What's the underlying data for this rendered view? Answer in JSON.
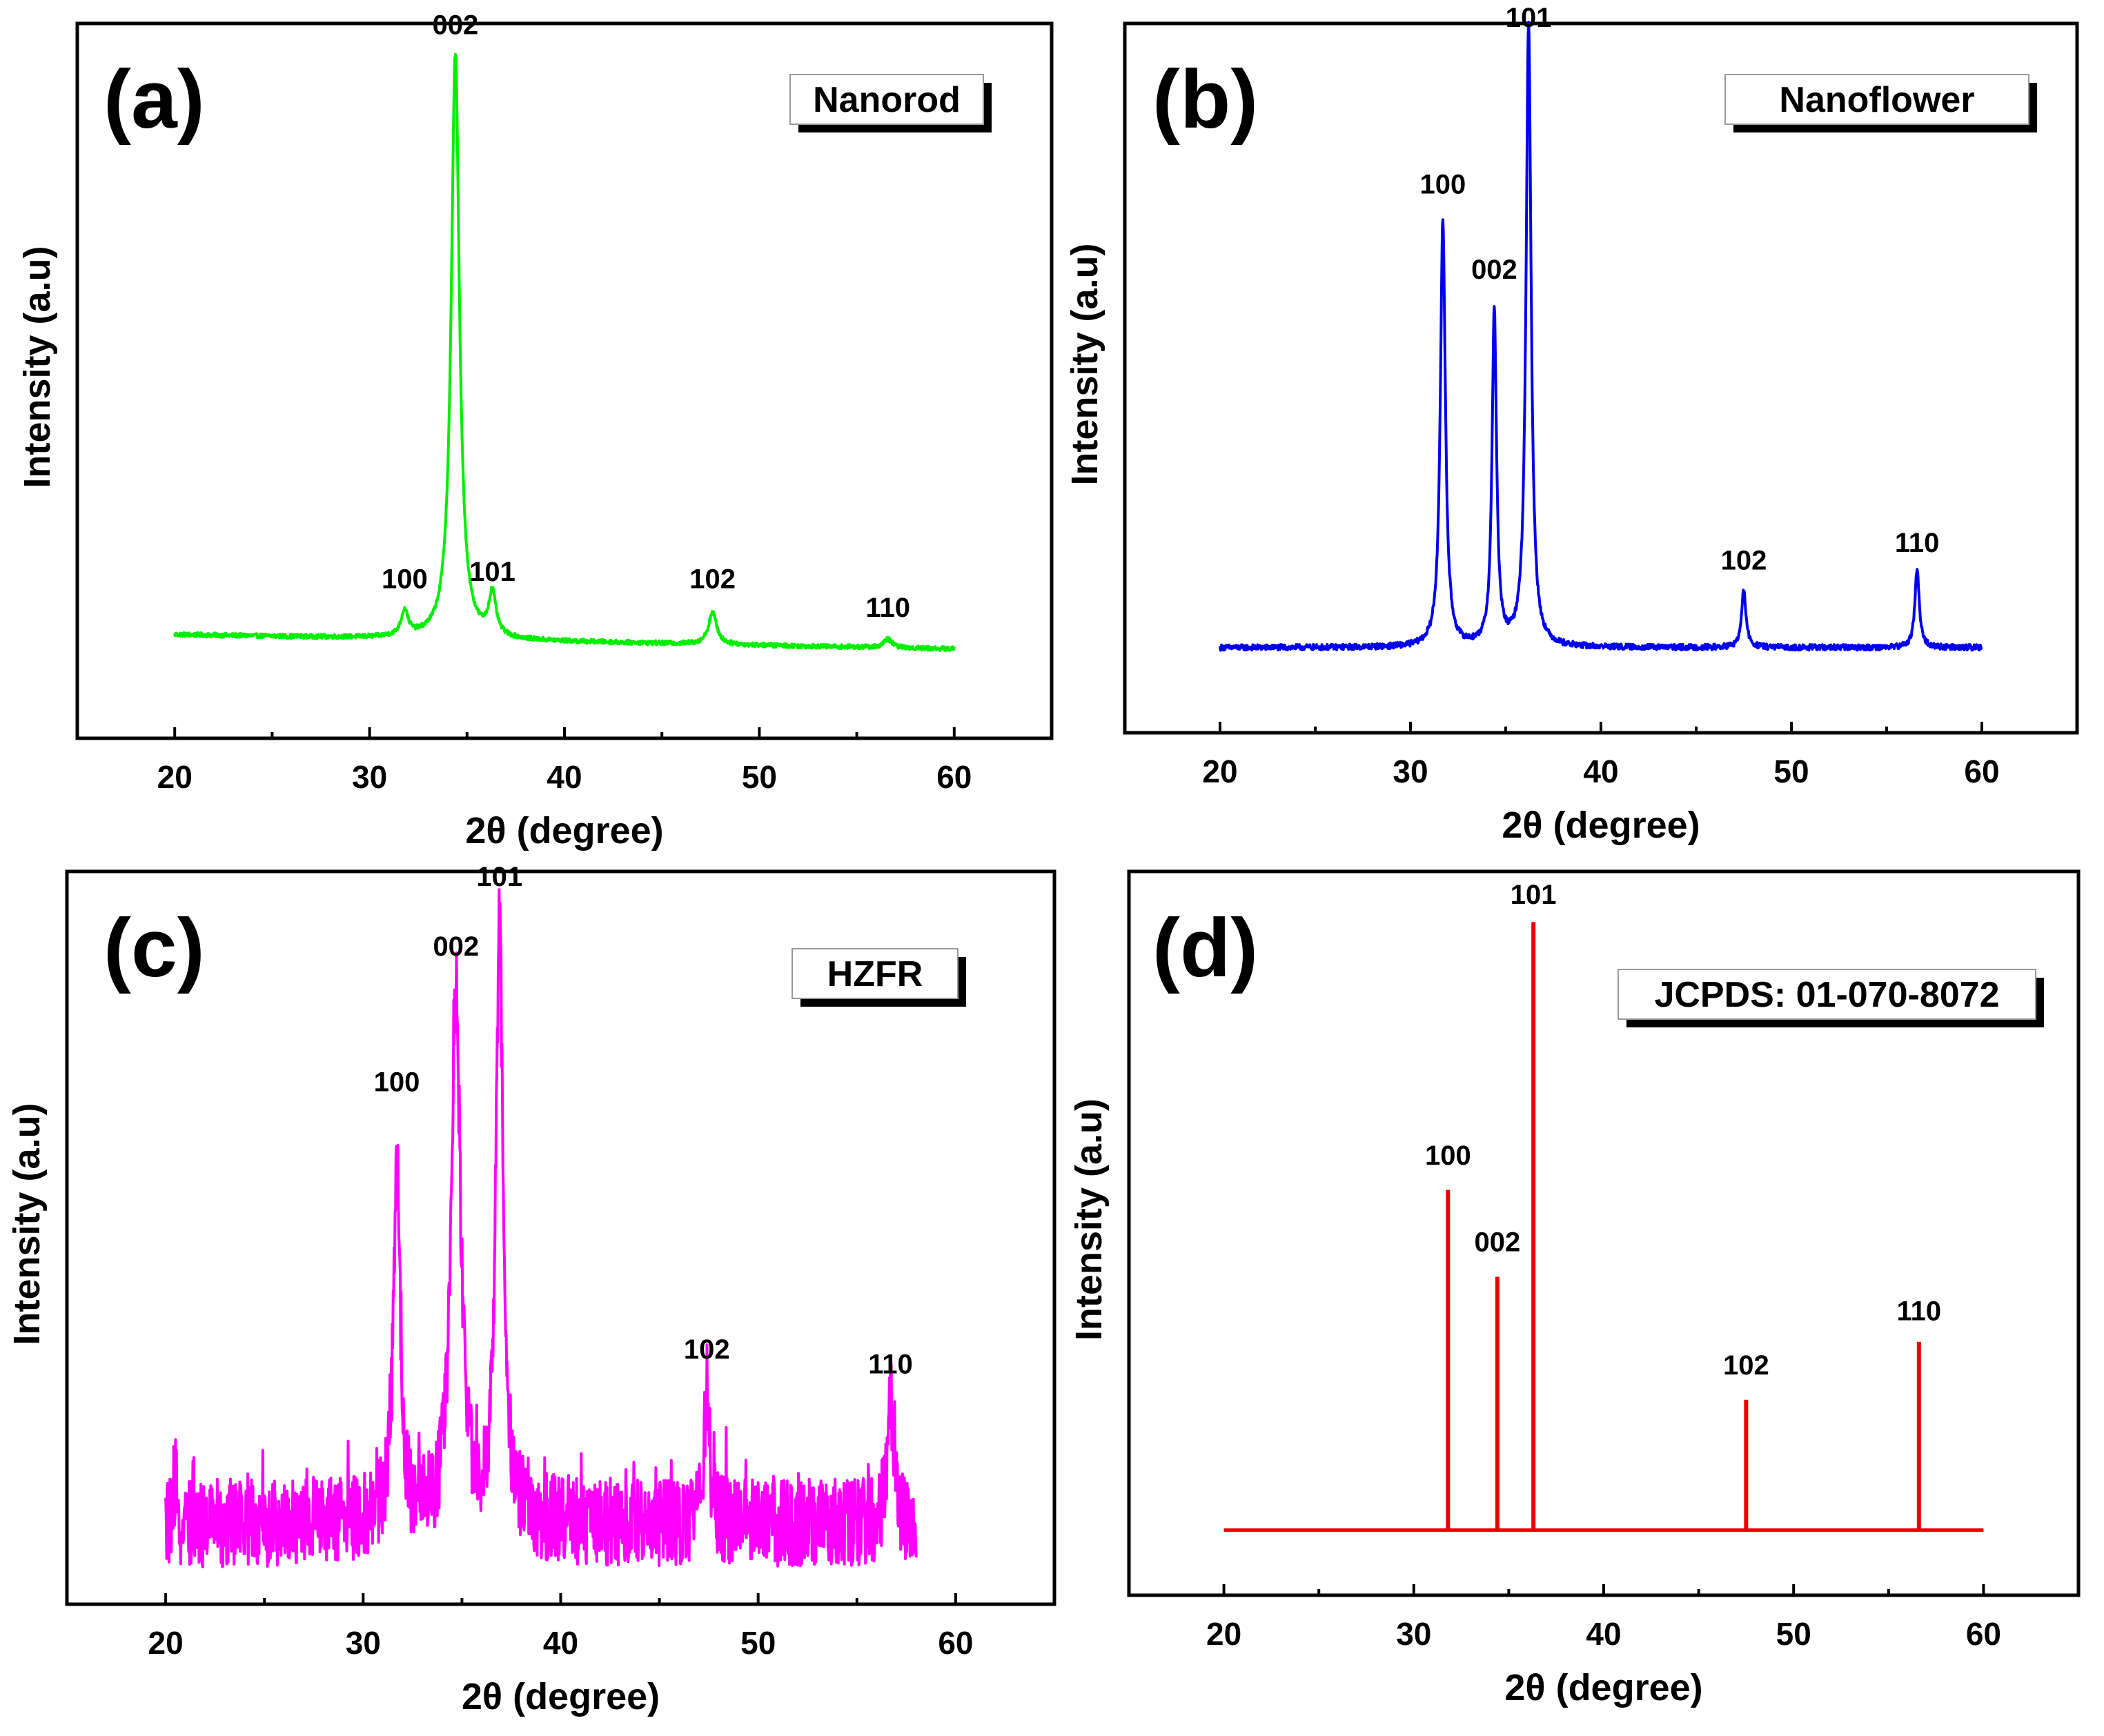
{
  "chart_data": [
    {
      "type": "line",
      "panel": "(a)",
      "legend": "Nanorod",
      "xlabel": "2θ (degree)",
      "ylabel": "Intensity (a.u)",
      "xlim": [
        15,
        65
      ],
      "ylim": [
        0,
        1
      ],
      "xticks": [
        20,
        30,
        40,
        50,
        60
      ],
      "color": "#00ee00",
      "style": "noisy-line",
      "x_start": 20,
      "x_end": 60,
      "baseline": [
        [
          20,
          0.145
        ],
        [
          60,
          0.125
        ]
      ],
      "noise": 0.003,
      "peaks": [
        {
          "label": "100",
          "x": 31.8,
          "height": 0.035,
          "width": 0.22
        },
        {
          "label": "002",
          "x": 34.4,
          "height": 0.82,
          "width": 0.25
        },
        {
          "label": "101",
          "x": 36.3,
          "height": 0.06,
          "width": 0.22
        },
        {
          "label": "102",
          "x": 47.6,
          "height": 0.045,
          "width": 0.25
        },
        {
          "label": "110",
          "x": 56.6,
          "height": 0.012,
          "width": 0.25
        }
      ],
      "peak_labels": [
        {
          "text": "100",
          "x": 31.8,
          "y": 0.21
        },
        {
          "text": "002",
          "x": 34.4,
          "y": 0.985
        },
        {
          "text": "101",
          "x": 36.3,
          "y": 0.22
        },
        {
          "text": "102",
          "x": 47.6,
          "y": 0.21
        },
        {
          "text": "110",
          "x": 56.6,
          "y": 0.17
        }
      ]
    },
    {
      "type": "line",
      "panel": "(b)",
      "legend": "Nanoflower",
      "xlabel": "2θ (degree)",
      "ylabel": "Intensity (a.u)",
      "xlim": [
        15,
        65
      ],
      "ylim": [
        0,
        1
      ],
      "xticks": [
        20,
        30,
        40,
        50,
        60
      ],
      "color": "#0000ee",
      "style": "noisy-line",
      "x_start": 20,
      "x_end": 60,
      "baseline": [
        [
          20,
          0.12
        ],
        [
          60,
          0.12
        ]
      ],
      "noise": 0.004,
      "peaks": [
        {
          "label": "100",
          "x": 31.7,
          "height": 0.6,
          "width": 0.16
        },
        {
          "label": "002",
          "x": 34.4,
          "height": 0.475,
          "width": 0.14
        },
        {
          "label": "101",
          "x": 36.2,
          "height": 0.88,
          "width": 0.16
        },
        {
          "label": "102",
          "x": 47.5,
          "height": 0.08,
          "width": 0.14
        },
        {
          "label": "110",
          "x": 56.6,
          "height": 0.11,
          "width": 0.14
        }
      ],
      "peak_labels": [
        {
          "text": "100",
          "x": 31.7,
          "y": 0.76
        },
        {
          "text": "002",
          "x": 34.4,
          "y": 0.64
        },
        {
          "text": "101",
          "x": 36.2,
          "y": 0.995
        },
        {
          "text": "102",
          "x": 47.5,
          "y": 0.23
        },
        {
          "text": "110",
          "x": 56.6,
          "y": 0.255
        }
      ]
    },
    {
      "type": "line",
      "panel": "(c)",
      "legend": "HZFR",
      "xlabel": "2θ (degree)",
      "ylabel": "Intensity (a.u)",
      "xlim": [
        15,
        65
      ],
      "ylim": [
        0,
        1
      ],
      "xticks": [
        20,
        30,
        40,
        50,
        60
      ],
      "color": "#ff00ff",
      "style": "noisy-line",
      "x_start": 20,
      "x_end": 58,
      "baseline": [
        [
          20,
          0.11
        ],
        [
          58,
          0.11
        ]
      ],
      "noise": 0.06,
      "peaks": [
        {
          "label": "100",
          "x": 31.7,
          "height": 0.5,
          "width": 0.2
        },
        {
          "label": "002",
          "x": 34.7,
          "height": 0.72,
          "width": 0.28
        },
        {
          "label": "101",
          "x": 36.9,
          "height": 0.8,
          "width": 0.22
        },
        {
          "label": "102",
          "x": 47.4,
          "height": 0.2,
          "width": 0.15
        },
        {
          "label": "110",
          "x": 56.7,
          "height": 0.18,
          "width": 0.18
        }
      ],
      "peak_labels": [
        {
          "text": "100",
          "x": 31.7,
          "y": 0.7
        },
        {
          "text": "002",
          "x": 34.7,
          "y": 0.885
        },
        {
          "text": "101",
          "x": 36.9,
          "y": 0.98
        },
        {
          "text": "102",
          "x": 47.4,
          "y": 0.335
        },
        {
          "text": "110",
          "x": 56.7,
          "y": 0.315
        }
      ]
    },
    {
      "type": "bar",
      "panel": "(d)",
      "legend": "JCPDS: 01-070-8072",
      "xlabel": "2θ (degree)",
      "ylabel": "Intensity (a.u)",
      "xlim": [
        15,
        65
      ],
      "ylim": [
        0,
        1
      ],
      "xticks": [
        20,
        30,
        40,
        50,
        60
      ],
      "color": "#ee0000",
      "style": "stick",
      "x_start": 20,
      "x_end": 60,
      "baseline": [
        [
          20,
          0.09
        ],
        [
          60,
          0.09
        ]
      ],
      "noise": 0,
      "peaks": [
        {
          "label": "100",
          "x": 31.8,
          "height": 0.47
        },
        {
          "label": "002",
          "x": 34.4,
          "height": 0.35
        },
        {
          "label": "101",
          "x": 36.3,
          "height": 0.84
        },
        {
          "label": "102",
          "x": 47.5,
          "height": 0.18
        },
        {
          "label": "110",
          "x": 56.6,
          "height": 0.26
        }
      ],
      "peak_labels": [
        {
          "text": "100",
          "x": 31.8,
          "y": 0.595
        },
        {
          "text": "002",
          "x": 34.4,
          "y": 0.475
        },
        {
          "text": "101",
          "x": 36.3,
          "y": 0.955
        },
        {
          "text": "102",
          "x": 47.5,
          "y": 0.305
        },
        {
          "text": "110",
          "x": 56.6,
          "y": 0.38
        }
      ]
    }
  ]
}
